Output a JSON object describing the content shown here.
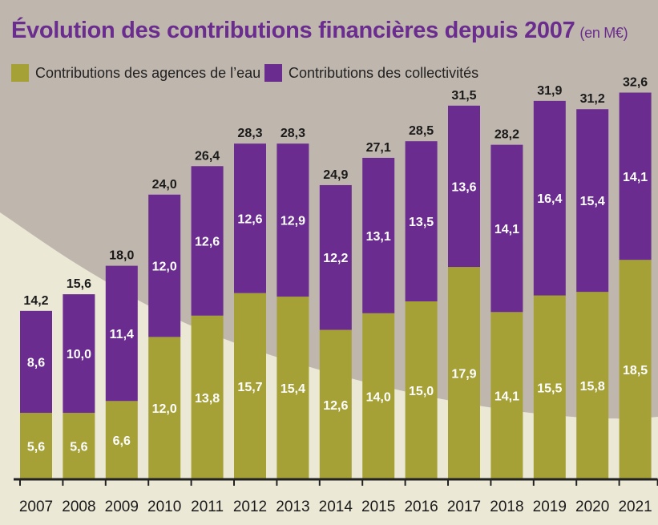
{
  "title": "Évolution des contributions financières depuis 2007",
  "title_unit": "(en M€)",
  "colors": {
    "agences": "#a6a137",
    "collectivites": "#6a2c8e",
    "title": "#6a2c8e",
    "background_light": "#ebe8d6",
    "background_dark": "#bfb6ae"
  },
  "chart_data": {
    "type": "bar",
    "stacked": true,
    "categories": [
      "2007",
      "2008",
      "2009",
      "2010",
      "2011",
      "2012",
      "2013",
      "2014",
      "2015",
      "2016",
      "2017",
      "2018",
      "2019",
      "2020",
      "2021"
    ],
    "series": [
      {
        "name": "Contributions des agences de l’eau",
        "values": [
          5.6,
          5.6,
          6.6,
          12.0,
          13.8,
          15.7,
          15.4,
          12.6,
          14.0,
          15.0,
          17.9,
          14.1,
          15.5,
          15.8,
          18.5
        ],
        "labels": [
          "5,6",
          "5,6",
          "6,6",
          "12,0",
          "13,8",
          "15,7",
          "15,4",
          "12,6",
          "14,0",
          "15,0",
          "17,9",
          "14,1",
          "15,5",
          "15,8",
          "18,5"
        ]
      },
      {
        "name": "Contributions des collectivités",
        "values": [
          8.6,
          10.0,
          11.4,
          12.0,
          12.6,
          12.6,
          12.9,
          12.2,
          13.1,
          13.5,
          13.6,
          14.1,
          16.4,
          15.4,
          14.1
        ],
        "labels": [
          "8,6",
          "10,0",
          "11,4",
          "12,0",
          "12,6",
          "12,6",
          "12,9",
          "12,2",
          "13,1",
          "13,5",
          "13,6",
          "14,1",
          "16,4",
          "15,4",
          "14,1"
        ]
      }
    ],
    "totals": [
      14.2,
      15.6,
      18.0,
      24.0,
      26.4,
      28.3,
      28.3,
      24.9,
      27.1,
      28.5,
      31.5,
      28.2,
      31.9,
      31.2,
      32.6
    ],
    "total_labels": [
      "14,2",
      "15,6",
      "18,0",
      "24,0",
      "26,4",
      "28,3",
      "28,3",
      "24,9",
      "27,1",
      "28,5",
      "31,5",
      "28,2",
      "31,9",
      "31,2",
      "32,6"
    ],
    "ylim": [
      0,
      35
    ],
    "xlabel": "",
    "ylabel": "",
    "grid": false,
    "legend_position": "top-left"
  }
}
